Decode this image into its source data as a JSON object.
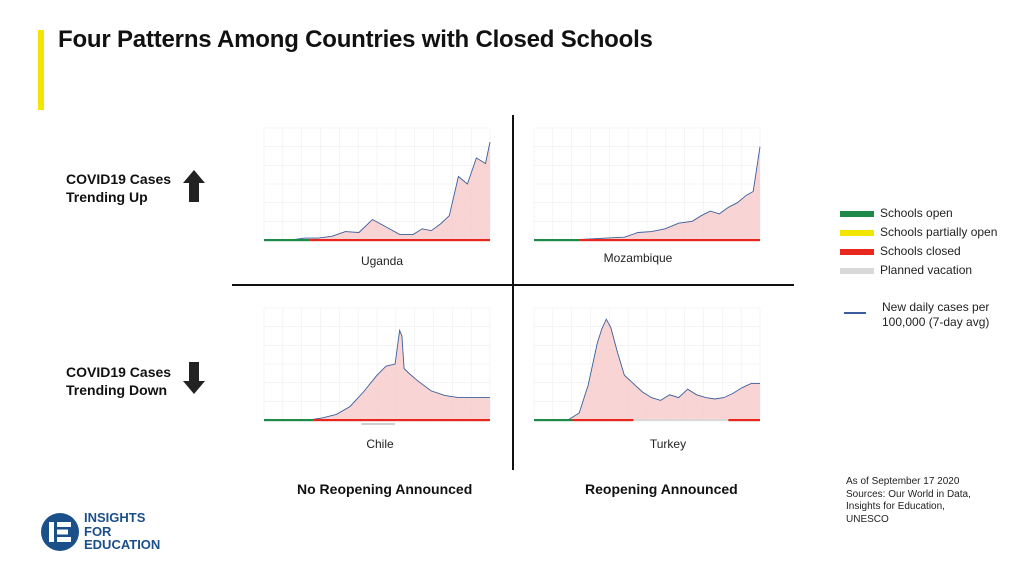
{
  "title": "Four Patterns Among Countries with Closed Schools",
  "row_labels": {
    "up_line1": "COVID19 Cases",
    "up_line2": "Trending Up",
    "down_line1": "COVID19 Cases",
    "down_line2": "Trending Down"
  },
  "column_labels": {
    "left": "No Reopening Announced",
    "right": "Reopening Announced"
  },
  "icons": {
    "up": "arrow-up-icon",
    "down": "arrow-down-icon"
  },
  "legend": {
    "items": [
      {
        "label": "Schools open",
        "color": "#1e8a4a"
      },
      {
        "label": "Schools partially open",
        "color": "#f2e600"
      },
      {
        "label": "Schools closed",
        "color": "#e8281f"
      },
      {
        "label": "Planned vacation",
        "color": "#d9d9d9"
      }
    ],
    "line_label_1": "New daily cases per",
    "line_label_2": "100,000 (7-day avg)",
    "line_color": "#3a5f9c"
  },
  "source": {
    "line1": "As of September 17 2020",
    "line2": "Sources: Our World in Data,",
    "line3": "Insights for Education,",
    "line4": "UNESCO"
  },
  "logo": {
    "line1": "INSIGHTS",
    "line2": "FOR",
    "line3": "EDUCATION"
  },
  "chart_data": [
    {
      "type": "area",
      "country": "Uganda",
      "x": [
        0,
        6,
        12,
        18,
        24,
        30,
        36,
        42,
        48,
        54,
        60,
        66,
        70,
        74,
        78,
        82,
        86,
        90,
        94,
        98,
        100
      ],
      "values": [
        0,
        0,
        0,
        0.2,
        0.2,
        0.4,
        0.9,
        0.8,
        2.2,
        1.4,
        0.6,
        0.6,
        1.2,
        1.0,
        1.7,
        2.6,
        6.8,
        6.0,
        8.8,
        8.2,
        10.5
      ],
      "status": [
        {
          "from": 0,
          "to": 20,
          "state": "open"
        },
        {
          "from": 20,
          "to": 100,
          "state": "closed"
        }
      ],
      "ylim": [
        0,
        12
      ]
    },
    {
      "type": "area",
      "country": "Mozambique",
      "x": [
        0,
        8,
        16,
        24,
        32,
        40,
        46,
        52,
        58,
        64,
        70,
        74,
        78,
        82,
        86,
        90,
        94,
        97,
        100
      ],
      "values": [
        0,
        0,
        0,
        0.1,
        0.2,
        0.3,
        0.8,
        0.9,
        1.2,
        1.8,
        2.0,
        2.6,
        3.1,
        2.8,
        3.5,
        4.0,
        4.8,
        5.2,
        10.0
      ],
      "status": [
        {
          "from": 0,
          "to": 20,
          "state": "open"
        },
        {
          "from": 20,
          "to": 100,
          "state": "closed"
        }
      ],
      "ylim": [
        0,
        12
      ]
    },
    {
      "type": "area",
      "country": "Chile",
      "x": [
        0,
        10,
        20,
        26,
        32,
        38,
        44,
        50,
        54,
        58,
        60,
        61,
        62,
        64,
        68,
        74,
        80,
        86,
        92,
        100
      ],
      "values": [
        0,
        0,
        0,
        0.2,
        0.5,
        1.2,
        2.5,
        4.0,
        4.8,
        5.0,
        8.0,
        7.5,
        4.6,
        4.2,
        3.5,
        2.6,
        2.2,
        2.0,
        2.0,
        2.0
      ],
      "status": [
        {
          "from": 0,
          "to": 22,
          "state": "open"
        },
        {
          "from": 22,
          "to": 100,
          "state": "closed"
        }
      ],
      "vacation": [
        {
          "from": 43,
          "to": 58
        }
      ],
      "ylim": [
        0,
        10
      ]
    },
    {
      "type": "area",
      "country": "Turkey",
      "x": [
        0,
        15,
        20,
        24,
        28,
        30,
        32,
        34,
        37,
        40,
        44,
        48,
        52,
        56,
        60,
        64,
        68,
        72,
        76,
        80,
        84,
        88,
        92,
        96,
        100
      ],
      "values": [
        0,
        0,
        0.5,
        2.5,
        5.5,
        6.5,
        7.2,
        6.6,
        4.8,
        3.2,
        2.6,
        2.0,
        1.6,
        1.4,
        1.8,
        1.6,
        2.2,
        1.8,
        1.6,
        1.5,
        1.6,
        1.9,
        2.3,
        2.6,
        2.6
      ],
      "status": [
        {
          "from": 0,
          "to": 17,
          "state": "open"
        },
        {
          "from": 17,
          "to": 44,
          "state": "closed"
        },
        {
          "from": 44,
          "to": 86,
          "state": "vacation"
        },
        {
          "from": 86,
          "to": 100,
          "state": "closed"
        }
      ],
      "ylim": [
        0,
        8
      ]
    }
  ]
}
